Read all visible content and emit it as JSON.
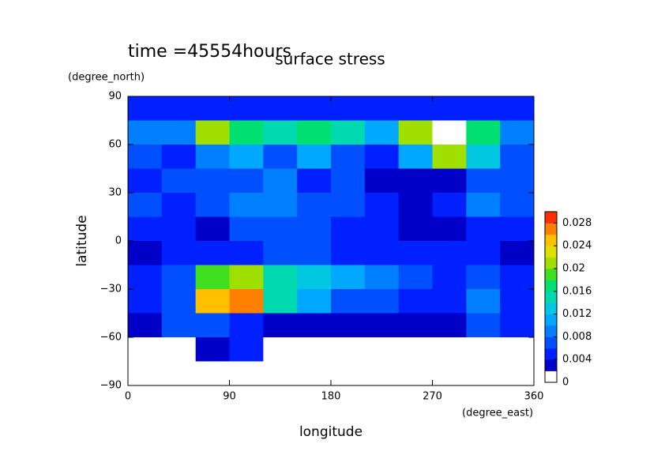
{
  "chart_data": {
    "type": "heatmap",
    "title": "surface stress",
    "subtitle": "time =45554hours",
    "x_label": "longitude",
    "x_unit": "(degree_east)",
    "y_label": "latitude",
    "y_unit": "(degree_north)",
    "x": [
      15,
      45,
      75,
      105,
      135,
      165,
      195,
      225,
      255,
      285,
      315,
      345
    ],
    "y": [
      82.5,
      67.5,
      52.5,
      37.5,
      22.5,
      7.5,
      -7.5,
      -22.5,
      -37.5,
      -52.5,
      -67.5,
      -82.5
    ],
    "z": [
      [
        0.004,
        0.004,
        0.004,
        0.004,
        0.004,
        0.004,
        0.004,
        0.004,
        0.004,
        0.004,
        0.004,
        0.004
      ],
      [
        0.008,
        0.008,
        0.02,
        0.016,
        0.014,
        0.016,
        0.014,
        0.01,
        0.02,
        0.031,
        0.016,
        0.008
      ],
      [
        0.006,
        0.004,
        0.008,
        0.01,
        0.006,
        0.01,
        0.006,
        0.004,
        0.01,
        0.02,
        0.012,
        0.006
      ],
      [
        0.004,
        0.006,
        0.006,
        0.006,
        0.008,
        0.004,
        0.006,
        0.002,
        0.003,
        0.002,
        0.006,
        0.006
      ],
      [
        0.006,
        0.004,
        0.006,
        0.008,
        0.008,
        0.006,
        0.006,
        0.004,
        0.002,
        0.004,
        0.008,
        0.006
      ],
      [
        0.004,
        0.004,
        0.002,
        0.006,
        0.006,
        0.006,
        0.004,
        0.004,
        0.002,
        0.002,
        0.004,
        0.004
      ],
      [
        0.002,
        0.004,
        0.004,
        0.004,
        0.006,
        0.006,
        0.004,
        0.004,
        0.004,
        0.004,
        0.004,
        0.002
      ],
      [
        0.004,
        0.006,
        0.018,
        0.02,
        0.014,
        0.012,
        0.01,
        0.008,
        0.006,
        0.004,
        0.006,
        0.004
      ],
      [
        0.004,
        0.006,
        0.024,
        0.026,
        0.014,
        0.01,
        0.006,
        0.006,
        0.004,
        0.004,
        0.008,
        0.004
      ],
      [
        0.002,
        0.006,
        0.006,
        0.004,
        0.002,
        0.002,
        0.002,
        0.002,
        0.002,
        0.002,
        0.006,
        0.004
      ],
      [
        0,
        0,
        0.002,
        0.004,
        0,
        0,
        0,
        0,
        0,
        0,
        0,
        0
      ],
      [
        0,
        0,
        0,
        0,
        0,
        0,
        0,
        0,
        0,
        0,
        0,
        0
      ]
    ],
    "xlim": [
      0,
      360
    ],
    "ylim": [
      -90,
      90
    ],
    "xticks": [
      0,
      90,
      180,
      270,
      360
    ],
    "yticks": [
      {
        "value": -90,
        "label": "−90"
      },
      {
        "value": -60,
        "label": "−60"
      },
      {
        "value": -30,
        "label": "−30"
      },
      0,
      30,
      60,
      90
    ],
    "clim": [
      0,
      0.03
    ],
    "cticks": [
      0,
      0.004,
      0.008,
      0.012,
      0.016,
      0.02,
      0.024,
      0.028
    ],
    "colors": [
      "#ffffff",
      "#0000c8",
      "#0020ff",
      "#0050ff",
      "#0080ff",
      "#00a8ff",
      "#00c8e0",
      "#00d8b0",
      "#00e070",
      "#40e020",
      "#a0e000",
      "#e0e000",
      "#ffc000",
      "#ff8000",
      "#ff3000"
    ],
    "over_color": "#ffffff"
  }
}
